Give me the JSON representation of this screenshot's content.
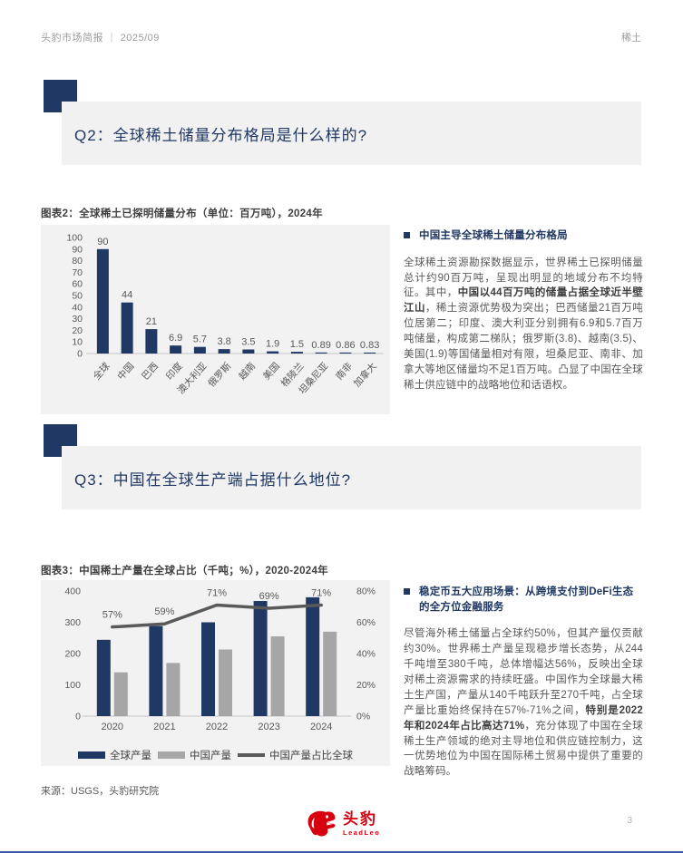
{
  "header": {
    "left": "头豹市场简报 ｜ 2025/09",
    "right": "稀土"
  },
  "q2": {
    "title": "Q2：全球稀土储量分布格局是什么样的?",
    "panel": {
      "heading": "中国主导全球稀土储量分布格局",
      "paragraph_segments": [
        {
          "t": "全球稀土资源勘探数据显示，世界稀土已探明储量总计约90百万吨，呈现出明显的地域分布不均特征。其中，",
          "b": false
        },
        {
          "t": "中国以44百万吨的储量占据全球近半壁江山",
          "b": true
        },
        {
          "t": "，稀土资源优势极为突出；巴西储量21百万吨位居第二；印度、澳大利亚分别拥有6.9和5.7百万吨储量，构成第二梯队；俄罗斯(3.8)、越南(3.5)、美国(1.9)等国储量相对有限，坦桑尼亚、南非、加拿大等地区储量均不足1百万吨。凸显了中国在全球稀土供应链中的战略地位和话语权。",
          "b": false
        }
      ]
    }
  },
  "q3": {
    "title": "Q3：中国在全球生产端占据什么地位?",
    "panel": {
      "heading": "稳定币五大应用场景：从跨境支付到DeFi生态的全方位金融服务",
      "paragraph_segments": [
        {
          "t": "尽管海外稀土储量占全球约50%，但其产量仅贡献约30%。世界稀土产量呈现稳步增长态势，从244千吨增至380千吨，总体增幅达56%，反映出全球对稀土资源需求的持续旺盛。中国作为全球最大稀土生产国，产量从140千吨跃升至270千吨，占全球产量比重始终保持在57%-71%之间，",
          "b": false
        },
        {
          "t": "特别是2022年和2024年占比高达71%",
          "b": true
        },
        {
          "t": "，充分体现了中国在全球稀土生产领域的绝对主导地位和供应链控制力，这一优势地位为中国在国际稀土贸易中提供了重要的战略筹码。",
          "b": false
        }
      ]
    }
  },
  "chart_data": [
    {
      "type": "bar",
      "title": "图表2：全球稀土已探明储量分布（单位：百万吨），2024年",
      "categories": [
        "全球",
        "中国",
        "巴西",
        "印度",
        "澳大利亚",
        "俄罗斯",
        "越南",
        "美国",
        "格陵兰",
        "坦桑尼亚",
        "南非",
        "加拿大"
      ],
      "values": [
        90,
        44,
        21,
        6.9,
        5.7,
        3.8,
        3.5,
        1.9,
        1.5,
        0.89,
        0.86,
        0.83
      ],
      "labels": [
        "90",
        "44",
        "21",
        "6.9",
        "5.7",
        "3.8",
        "3.5",
        "1.9",
        "1.5",
        "0.89",
        "0.86",
        "0.83"
      ],
      "xlabel": "",
      "ylabel": "",
      "ylim": [
        0,
        100
      ],
      "ytick_step": 10,
      "grid": false,
      "bar_color": "#1F3864"
    },
    {
      "type": "combo",
      "title": "图表3：中国稀土产量在全球占比（千吨；%），2020-2024年",
      "categories": [
        "2020",
        "2021",
        "2022",
        "2023",
        "2024"
      ],
      "series": [
        {
          "name": "全球产量",
          "type": "bar",
          "color": "#1F3864",
          "values": [
            244,
            288,
            300,
            368,
            380
          ]
        },
        {
          "name": "中国产量",
          "type": "bar",
          "color": "#A6A6A6",
          "values": [
            140,
            170,
            213,
            255,
            270
          ]
        },
        {
          "name": "中国产量占比全球",
          "type": "line",
          "color": "#595959",
          "axis": "right",
          "values": [
            57,
            59,
            71,
            69,
            71
          ],
          "labels": [
            "57%",
            "59%",
            "71%",
            "69%",
            "71%"
          ]
        }
      ],
      "left_axis": {
        "min": 0,
        "max": 400,
        "step": 100
      },
      "right_axis": {
        "min": 0,
        "max": 80,
        "step": 20,
        "suffix": "%"
      },
      "grid": false,
      "legend_position": "bottom"
    }
  ],
  "source": "来源：USGS，头豹研究院",
  "footer": {
    "brand": "头豹",
    "brand_sub": "LeadLeo",
    "page_number": "3"
  },
  "colors": {
    "navy": "#1F3864",
    "gray_bar": "#A6A6A6",
    "line_gray": "#595959",
    "chart_bg": "#F2F2F2",
    "banner_bg": "#F1F1F2",
    "brand_red": "#D7000F",
    "axis_text": "#595959",
    "muted_header": "#9b9b9b"
  }
}
